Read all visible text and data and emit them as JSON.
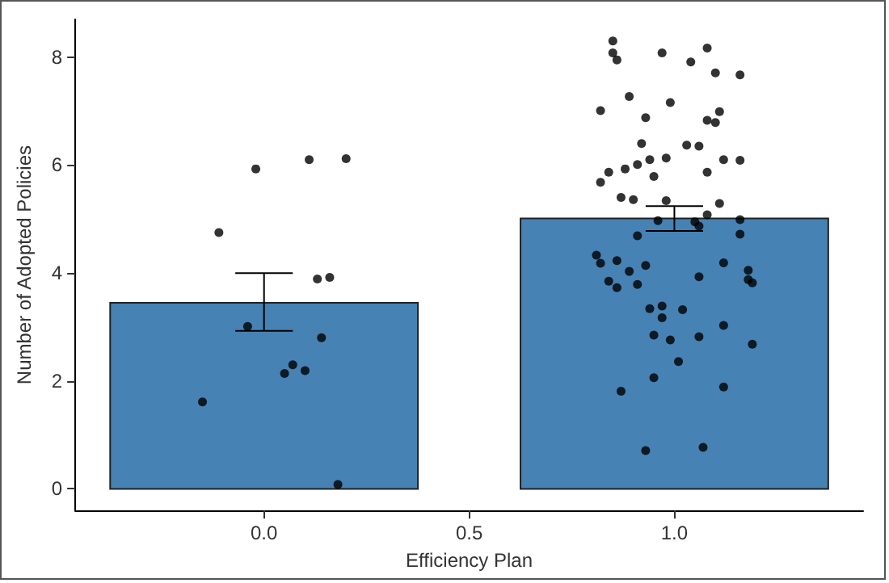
{
  "chart_data": {
    "type": "bar",
    "xlabel": "Efficiency Plan",
    "ylabel": "Number of Adopted Policies",
    "x": [
      0,
      1
    ],
    "xlim": [
      -0.46,
      1.46
    ],
    "xticks": [
      {
        "value": 0,
        "label": "0.0"
      },
      {
        "value": 0.5,
        "label": "0.5"
      },
      {
        "value": 1,
        "label": "1.0"
      }
    ],
    "ylim": [
      -0.4,
      8.7
    ],
    "yticks": [
      0,
      2,
      4,
      6,
      8
    ],
    "series": [
      {
        "color": "#4682b4",
        "values": [
          3.45,
          5.01
        ],
        "errors": [
          [
            2.93,
            4.0
          ],
          [
            4.78,
            5.24
          ]
        ]
      },
      {
        "type": "scatter",
        "color": "#000000",
        "marker": "circle",
        "x": [
          -0.15,
          -0.11,
          -0.04,
          -0.02,
          0.05,
          0.07,
          0.1,
          0.11,
          0.13,
          0.14,
          0.16,
          0.18,
          0.2,
          0.85,
          0.85,
          0.86,
          0.97,
          1.04,
          1.08,
          1.1,
          1.16,
          0.89,
          0.99,
          0.82,
          0.93,
          1.08,
          1.1,
          1.11,
          0.92,
          1.03,
          1.06,
          0.94,
          0.98,
          0.91,
          1.12,
          1.16,
          0.88,
          0.84,
          0.95,
          1.08,
          0.82,
          0.87,
          0.9,
          0.98,
          1.11,
          1.08,
          0.96,
          1.05,
          1.06,
          1.16,
          0.91,
          1.16,
          0.81,
          0.82,
          0.86,
          0.89,
          0.93,
          1.12,
          0.84,
          0.86,
          0.91,
          1.06,
          1.18,
          1.18,
          1.19,
          0.94,
          0.97,
          0.97,
          1.02,
          0.95,
          0.99,
          1.06,
          1.12,
          1.19,
          1.01,
          0.95,
          0.87,
          1.12,
          0.93,
          1.07
        ],
        "values": [
          1.61,
          4.75,
          3.01,
          5.93,
          2.14,
          2.3,
          2.19,
          6.1,
          3.89,
          2.8,
          3.92,
          0.08,
          6.12,
          8.3,
          8.08,
          7.95,
          8.08,
          7.91,
          8.17,
          7.71,
          7.67,
          7.27,
          7.16,
          7.01,
          6.88,
          6.83,
          6.79,
          6.99,
          6.4,
          6.37,
          6.35,
          6.1,
          6.13,
          6.01,
          6.1,
          6.09,
          5.93,
          5.87,
          5.79,
          5.87,
          5.68,
          5.4,
          5.36,
          5.34,
          5.29,
          5.08,
          4.97,
          4.95,
          4.87,
          4.99,
          4.69,
          4.72,
          4.33,
          4.18,
          4.23,
          4.03,
          4.14,
          4.19,
          3.85,
          3.73,
          3.79,
          3.93,
          4.05,
          3.88,
          3.82,
          3.34,
          3.39,
          3.17,
          3.32,
          2.85,
          2.76,
          2.82,
          3.03,
          2.68,
          2.36,
          2.06,
          1.81,
          1.89,
          0.71,
          0.77
        ]
      }
    ]
  }
}
